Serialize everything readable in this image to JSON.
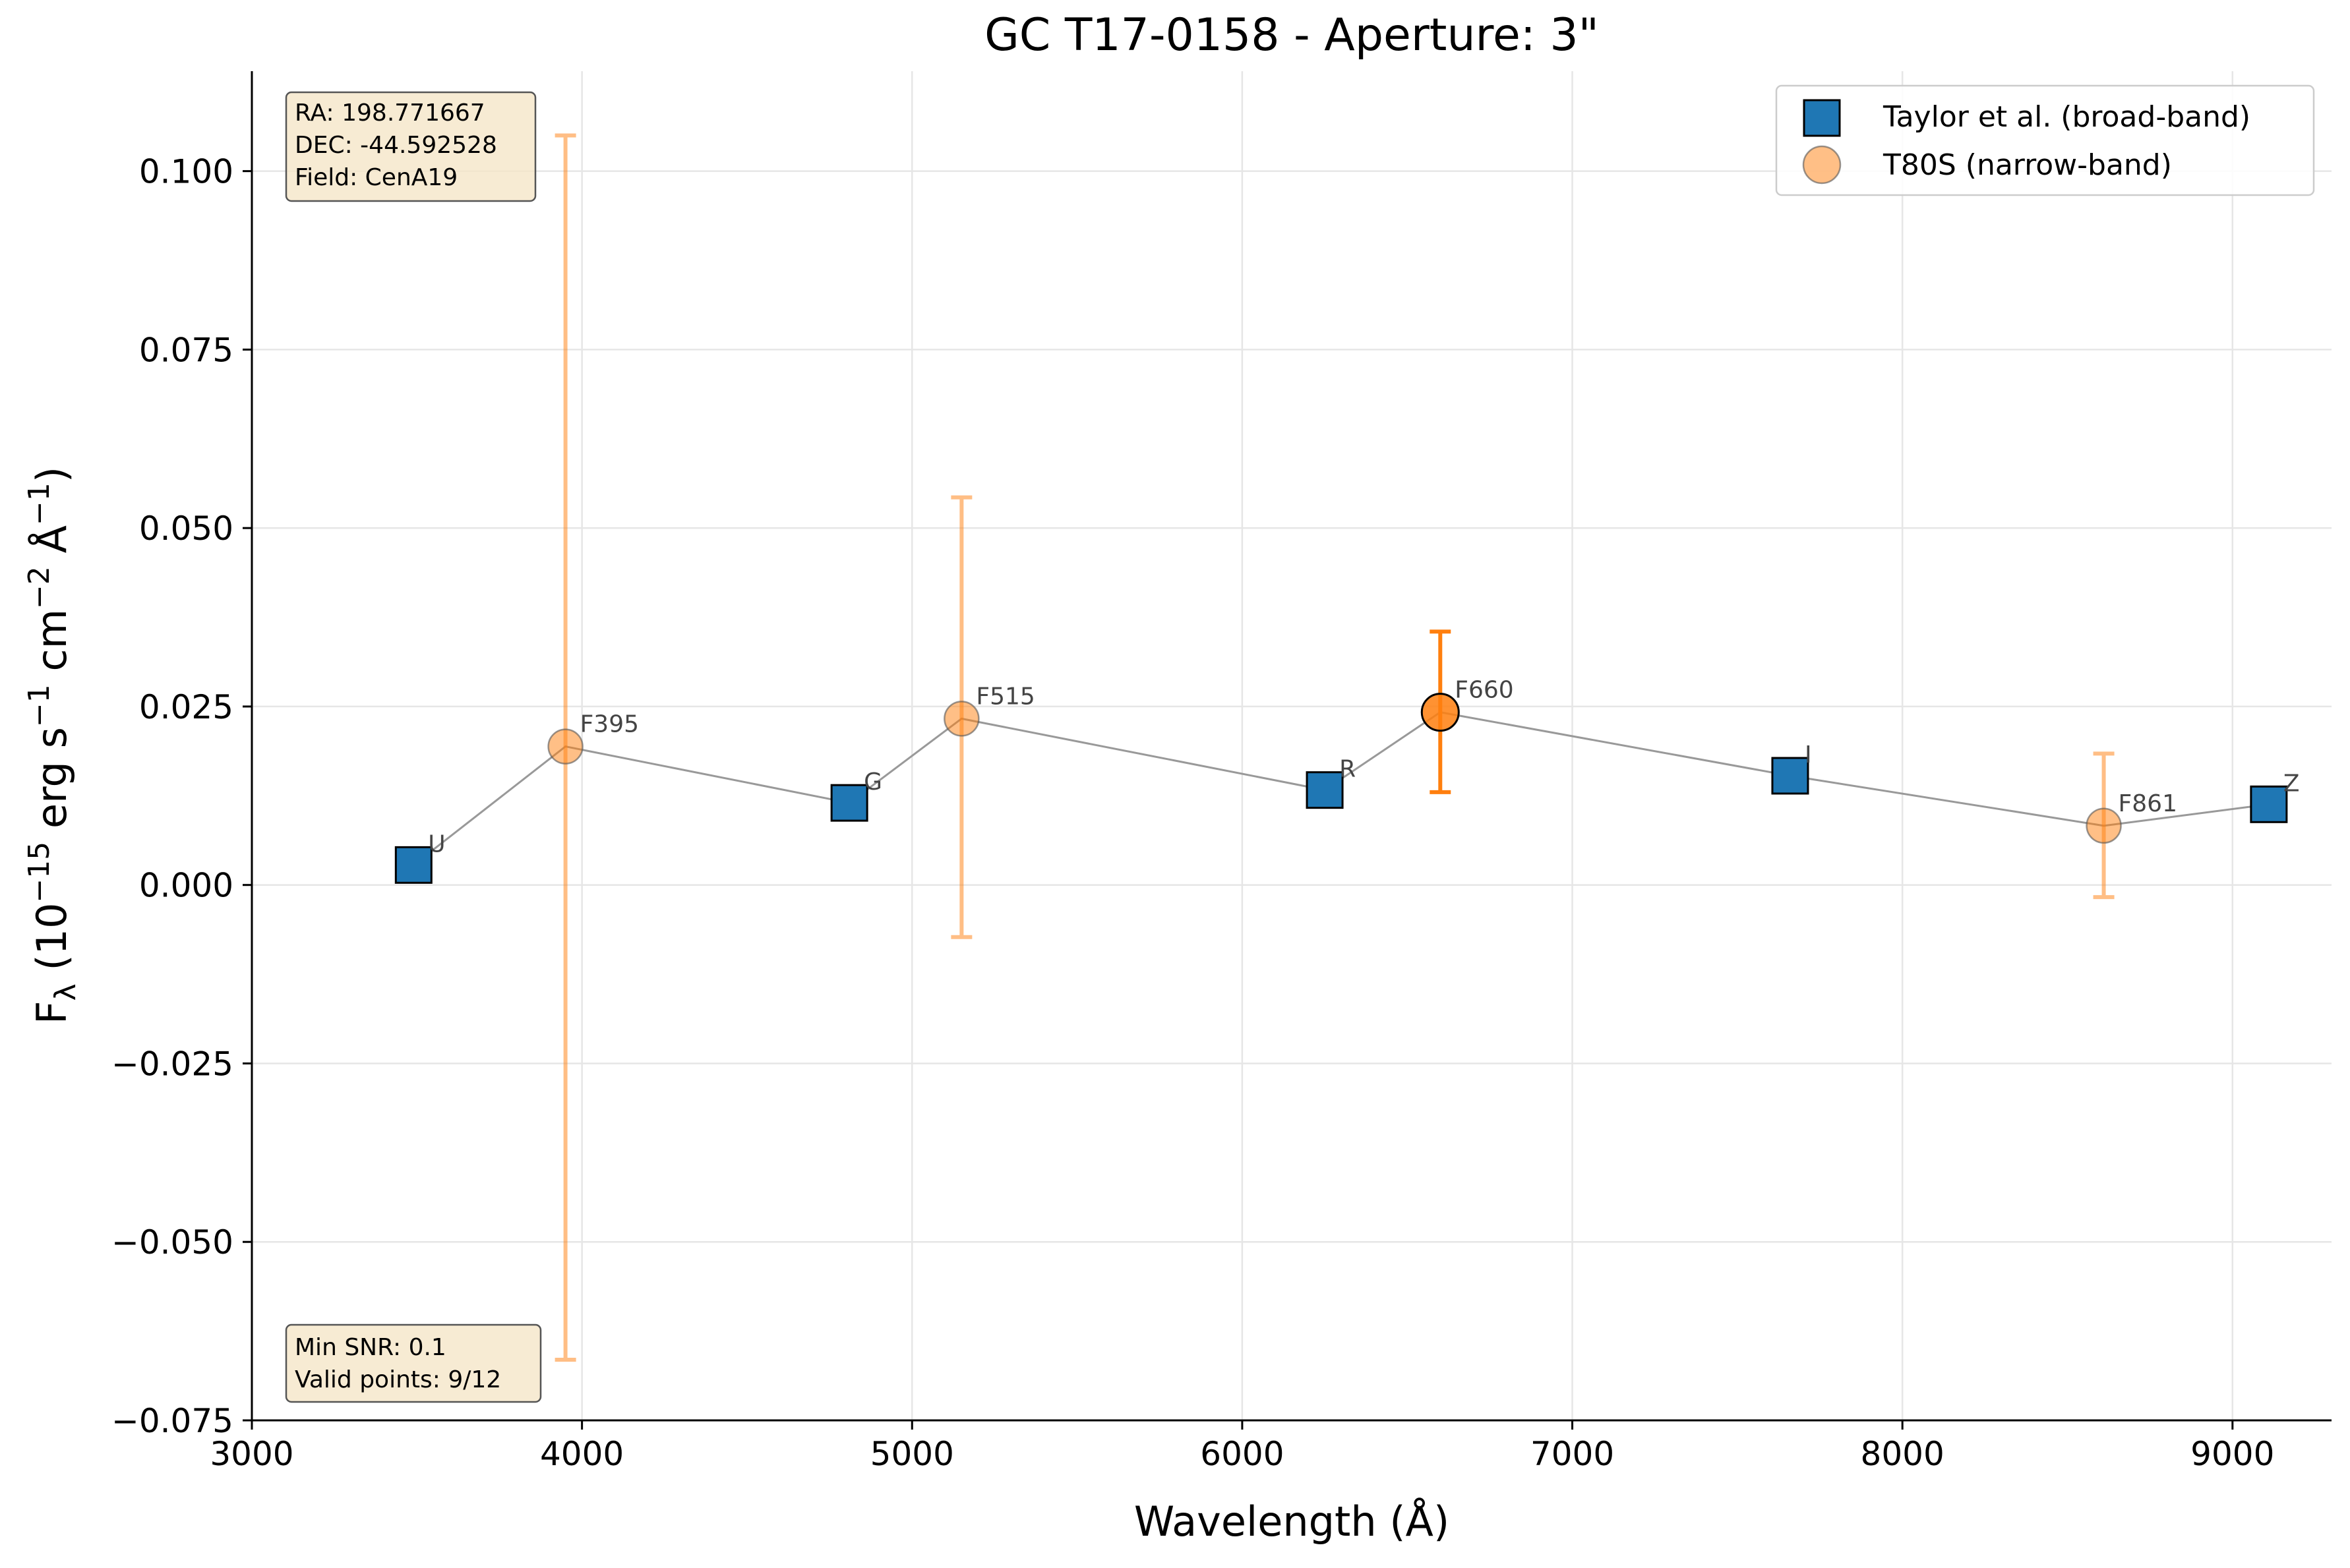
{
  "chart_data": {
    "type": "scatter",
    "title": "GC T17-0158 - Aperture: 3\"",
    "xlabel": "Wavelength (Å)",
    "ylabel_parts": {
      "F": "F",
      "lambda": "λ",
      "open": " (10",
      "exp1": "−15",
      "erg": " erg s",
      "exp2": "−1",
      "cm": " cm",
      "exp3": "−2",
      "ang": " Å",
      "exp4": "−1",
      "close": ")"
    },
    "xlim": [
      3000,
      9300
    ],
    "ylim": [
      -0.075,
      0.114
    ],
    "x_ticks": [
      3000,
      4000,
      5000,
      6000,
      7000,
      8000,
      9000
    ],
    "y_ticks": [
      -0.075,
      -0.05,
      -0.025,
      0.0,
      0.025,
      0.05,
      0.075,
      0.1
    ],
    "grid": true,
    "legend_position": "top-right",
    "series": [
      {
        "name": "Taylor et al. (broad-band)",
        "marker": "square",
        "color": "#1f77b4",
        "points": [
          {
            "label": "U",
            "x": 3490,
            "y": 0.0028
          },
          {
            "label": "G",
            "x": 4810,
            "y": 0.0115
          },
          {
            "label": "R",
            "x": 6250,
            "y": 0.0133
          },
          {
            "label": "I",
            "x": 7660,
            "y": 0.0153
          },
          {
            "label": "Z",
            "x": 9110,
            "y": 0.0113
          }
        ]
      },
      {
        "name": "T80S (narrow-band)",
        "marker": "circle",
        "color": "#ff7f0e",
        "points": [
          {
            "label": "F395",
            "x": 3950,
            "y": 0.0194,
            "err_low": -0.0665,
            "err_high": 0.105,
            "highlight": false
          },
          {
            "label": "F515",
            "x": 5150,
            "y": 0.0233,
            "err_low": -0.0073,
            "err_high": 0.0543,
            "highlight": false
          },
          {
            "label": "F660",
            "x": 6600,
            "y": 0.0242,
            "err_low": 0.013,
            "err_high": 0.0355,
            "highlight": true
          },
          {
            "label": "F861",
            "x": 8610,
            "y": 0.0083,
            "err_low": -0.0017,
            "err_high": 0.0184,
            "highlight": false
          }
        ]
      }
    ],
    "connecting_line": [
      {
        "x": 3490,
        "y": 0.0028
      },
      {
        "x": 3950,
        "y": 0.0194
      },
      {
        "x": 4810,
        "y": 0.0115
      },
      {
        "x": 5150,
        "y": 0.0233
      },
      {
        "x": 6250,
        "y": 0.0133
      },
      {
        "x": 6600,
        "y": 0.0242
      },
      {
        "x": 7660,
        "y": 0.0153
      },
      {
        "x": 8610,
        "y": 0.0083
      },
      {
        "x": 9110,
        "y": 0.0113
      }
    ],
    "info_box": {
      "ra": "RA: 198.771667",
      "dec": "DEC: -44.592528",
      "field": "Field: CenA19"
    },
    "stats_box": {
      "min_snr": "Min SNR: 0.1",
      "valid_points": "Valid points: 9/12"
    }
  }
}
